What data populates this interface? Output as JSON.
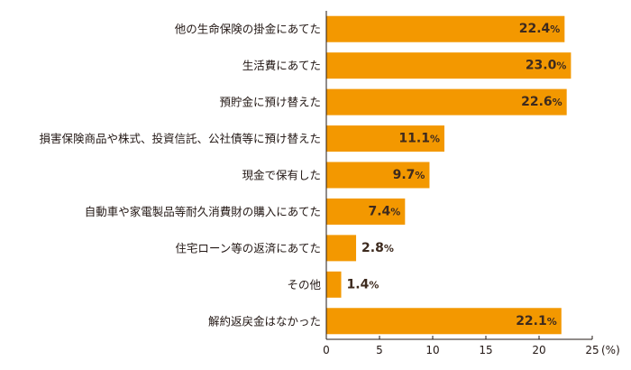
{
  "chart_data": {
    "type": "bar",
    "orientation": "horizontal",
    "categories": [
      "他の生命保険の掛金にあてた",
      "生活費にあてた",
      "預貯金に預け替えた",
      "損害保険商品や株式、投資信託、公社債等に預け替えた",
      "現金で保有した",
      "自動車や家電製品等耐久消費財の購入にあてた",
      "住宅ローン等の返済にあてた",
      "その他",
      "解約返戻金はなかった"
    ],
    "values": [
      22.4,
      23.0,
      22.6,
      11.1,
      9.7,
      7.4,
      2.8,
      1.4,
      22.1
    ],
    "value_labels": [
      "22.4%",
      "23.0%",
      "22.6%",
      "11.1%",
      "9.7%",
      "7.4%",
      "2.8%",
      "1.4%",
      "22.1%"
    ],
    "xlim": [
      0,
      25
    ],
    "xticks": [
      "0",
      "5",
      "10",
      "15",
      "20",
      "25"
    ],
    "x_unit": "(%)",
    "grid": false,
    "bar_color": "#f39800"
  }
}
